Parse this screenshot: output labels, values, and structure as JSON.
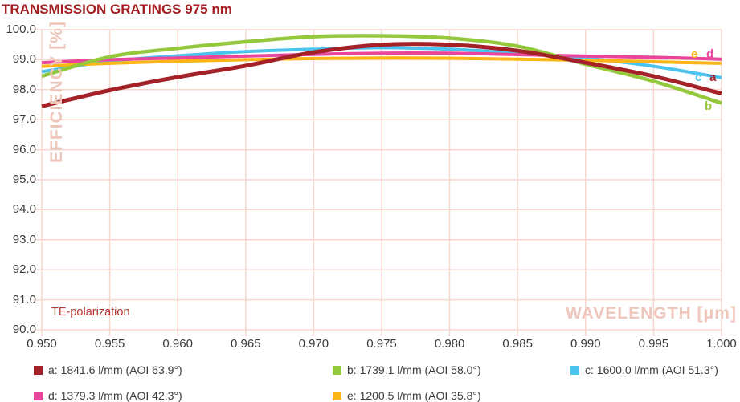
{
  "title": "TRANSMISSION GRATINGS 975 nm",
  "colors": {
    "title": "#A71E22",
    "grid": "#F6D7CD",
    "axis_label": "#EEC6BB",
    "tick_text": "#3A3A3A",
    "annotation": "#B1362F",
    "legend_text": "#3C3C3B",
    "background": "#FFFFFF"
  },
  "chart": {
    "y_axis_label": "EFFICIENCY [%]",
    "x_axis_label": "WAVELENGTH [μm]",
    "annotation": "TE-polarization",
    "x_ticks": [
      "0.950",
      "0.955",
      "0.960",
      "0.965",
      "0.970",
      "0.975",
      "0.980",
      "0.985",
      "0.990",
      "0.995",
      "1.000"
    ],
    "y_ticks": [
      "100.0",
      "99.0",
      "98.0",
      "97.0",
      "96.0",
      "95.0",
      "94.0",
      "93.0",
      "92.0",
      "91.0",
      "90.0"
    ]
  },
  "chart_data": {
    "type": "line",
    "title": "TRANSMISSION GRATINGS 975 nm",
    "xlabel": "WAVELENGTH [μm]",
    "ylabel": "EFFICIENCY [%]",
    "xlim": [
      0.95,
      1.0
    ],
    "ylim": [
      90.0,
      100.0
    ],
    "grid": true,
    "legend_position": "bottom",
    "x": [
      0.95,
      0.955,
      0.96,
      0.965,
      0.97,
      0.975,
      0.98,
      0.985,
      0.99,
      0.995,
      1.0
    ],
    "series": [
      {
        "id": "a",
        "end_label": "a",
        "label": "a: 1841.6 l/mm (AOI 63.9°)",
        "color": "#A32127",
        "values": [
          97.45,
          97.98,
          98.42,
          98.8,
          99.25,
          99.5,
          99.5,
          99.3,
          98.9,
          98.45,
          97.87
        ]
      },
      {
        "id": "b",
        "end_label": "b",
        "label": "b: 1739.1 l/mm (AOI 58.0°)",
        "color": "#94C83D",
        "values": [
          98.45,
          99.1,
          99.38,
          99.6,
          99.77,
          99.8,
          99.72,
          99.45,
          98.85,
          98.28,
          97.55
        ]
      },
      {
        "id": "c",
        "end_label": "c",
        "label": "c: 1600.0 l/mm (AOI 51.3°)",
        "color": "#4AC3EF",
        "values": [
          98.6,
          98.95,
          99.13,
          99.27,
          99.35,
          99.4,
          99.35,
          99.22,
          99.05,
          98.78,
          98.4
        ]
      },
      {
        "id": "d",
        "end_label": "d",
        "label": "d: 1379.3 l/mm (AOI 42.3°)",
        "color": "#E9459B",
        "values": [
          98.9,
          99.0,
          99.06,
          99.12,
          99.18,
          99.22,
          99.22,
          99.17,
          99.12,
          99.08,
          99.02
        ]
      },
      {
        "id": "e",
        "end_label": "e",
        "label": "e: 1200.5 l/mm (AOI 35.8°)",
        "color": "#FBB517",
        "values": [
          98.78,
          98.88,
          98.95,
          99.0,
          99.04,
          99.06,
          99.05,
          99.02,
          98.98,
          98.93,
          98.88
        ]
      }
    ]
  },
  "legend": {
    "slots": {
      "a": "leg-a",
      "b": "leg-b",
      "c": "leg-c",
      "d": "leg-d",
      "e": "leg-e"
    }
  }
}
